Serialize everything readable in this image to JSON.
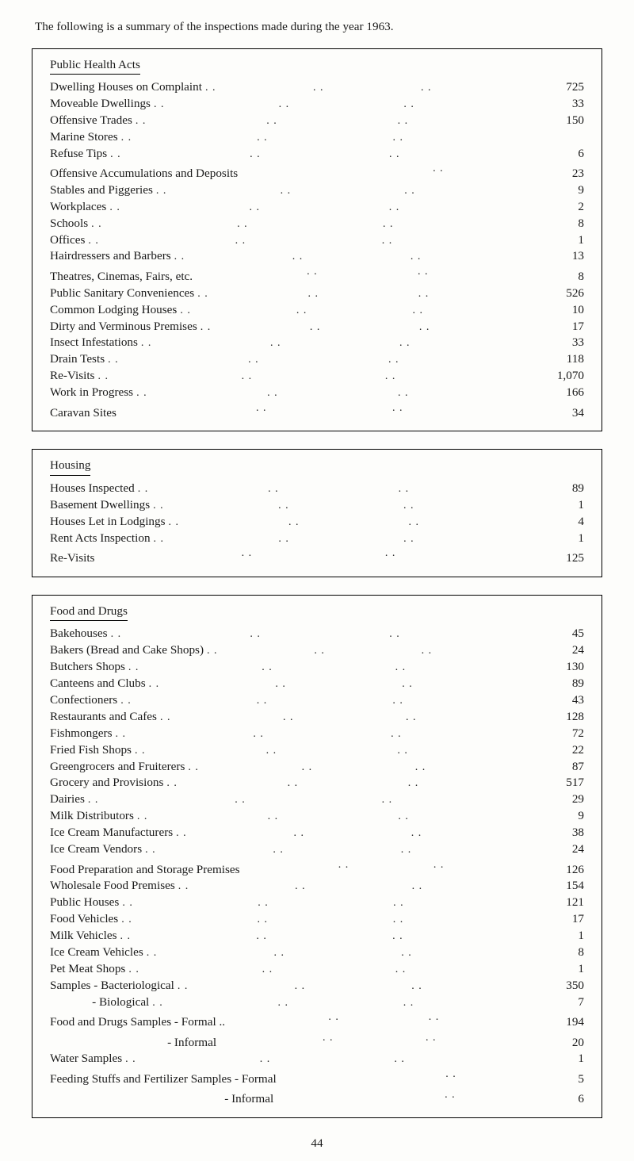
{
  "intro": "The following is a summary of the inspections made during the year 1963.",
  "page_number": "44",
  "panels": [
    {
      "heading": "Public Health Acts",
      "rows": [
        {
          "label": "Dwelling Houses on Complaint",
          "value": "725"
        },
        {
          "label": "Moveable Dwellings",
          "value": "33"
        },
        {
          "label": "Offensive Trades",
          "value": "150"
        },
        {
          "label": "Marine Stores",
          "value": ""
        },
        {
          "label": "Refuse Tips",
          "value": "6"
        },
        {
          "label": "Offensive Accumulations and Deposits",
          "value": "23",
          "dots": 1
        },
        {
          "label": "Stables and Piggeries",
          "value": "9"
        },
        {
          "label": "Workplaces",
          "value": "2"
        },
        {
          "label": "Schools",
          "value": "8"
        },
        {
          "label": "Offices",
          "value": "1"
        },
        {
          "label": "Hairdressers and Barbers",
          "value": "13"
        },
        {
          "label": "Theatres, Cinemas, Fairs, etc.",
          "value": "8",
          "dots": 2
        },
        {
          "label": "Public Sanitary Conveniences",
          "value": "526"
        },
        {
          "label": "Common Lodging Houses",
          "value": "10"
        },
        {
          "label": "Dirty and Verminous Premises",
          "value": "17"
        },
        {
          "label": "Insect Infestations",
          "value": "33"
        },
        {
          "label": "Drain Tests",
          "value": "118"
        },
        {
          "label": "Re-Visits",
          "value": "1,070"
        },
        {
          "label": "Work in Progress",
          "value": "166"
        },
        {
          "label": "Caravan Sites",
          "value": "34",
          "dots": 2
        }
      ]
    },
    {
      "heading": "Housing",
      "rows": [
        {
          "label": "Houses Inspected",
          "value": "89"
        },
        {
          "label": "Basement Dwellings",
          "value": "1"
        },
        {
          "label": "Houses Let in Lodgings",
          "value": "4"
        },
        {
          "label": "Rent Acts Inspection",
          "value": "1"
        },
        {
          "label": "Re-Visits",
          "value": "125",
          "dots": 2
        }
      ]
    },
    {
      "heading": "Food and Drugs",
      "rows": [
        {
          "label": "Bakehouses",
          "value": "45"
        },
        {
          "label": "Bakers (Bread and Cake Shops)",
          "value": "24"
        },
        {
          "label": "Butchers Shops",
          "value": "130"
        },
        {
          "label": "Canteens and Clubs",
          "value": "89"
        },
        {
          "label": "Confectioners",
          "value": "43"
        },
        {
          "label": "Restaurants and Cafes",
          "value": "128"
        },
        {
          "label": "Fishmongers",
          "value": "72"
        },
        {
          "label": "Fried Fish Shops",
          "value": "22"
        },
        {
          "label": "Greengrocers and Fruiterers",
          "value": "87"
        },
        {
          "label": "Grocery and Provisions",
          "value": "517"
        },
        {
          "label": "Dairies",
          "value": "29"
        },
        {
          "label": "Milk Distributors",
          "value": "9"
        },
        {
          "label": "Ice Cream Manufacturers",
          "value": "38"
        },
        {
          "label": "Ice Cream Vendors",
          "value": "24"
        },
        {
          "label": "Food Preparation and Storage Premises",
          "value": "126",
          "dots": 2
        },
        {
          "label": "Wholesale Food Premises",
          "value": "154"
        },
        {
          "label": "Public Houses",
          "value": "121"
        },
        {
          "label": "Food Vehicles",
          "value": "17"
        },
        {
          "label": "Milk Vehicles",
          "value": "1"
        },
        {
          "label": "Ice Cream Vehicles",
          "value": "8"
        },
        {
          "label": "Pet Meat Shops",
          "value": "1"
        },
        {
          "label": "Samples - Bacteriological",
          "value": "350"
        },
        {
          "label": "              - Biological",
          "value": "7"
        },
        {
          "label": "Food and Drugs Samples - Formal ..",
          "value": "194",
          "dots": 2
        },
        {
          "label": "                                       - Informal",
          "value": "20",
          "dots": 2
        },
        {
          "label": "Water Samples",
          "value": "1"
        },
        {
          "label": "Feeding Stuffs and Fertilizer Samples - Formal",
          "value": "5",
          "dots": 1
        },
        {
          "label": "                                                          - Informal",
          "value": "6",
          "dots": 1
        }
      ]
    }
  ]
}
